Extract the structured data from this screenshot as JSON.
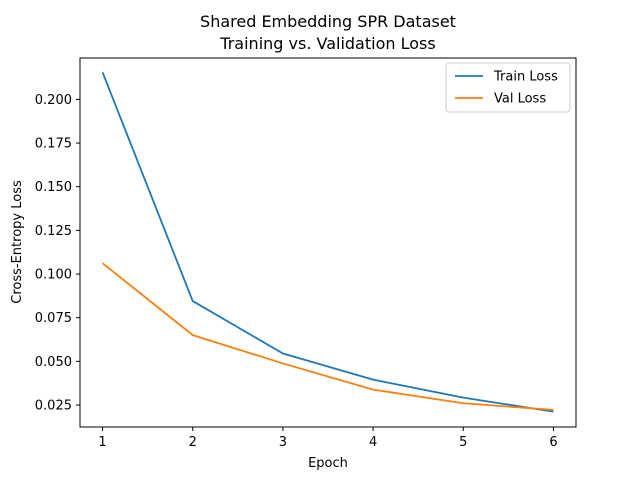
{
  "chart_data": {
    "type": "line",
    "title": "Shared Embedding SPR Dataset",
    "subtitle": "Training vs. Validation Loss",
    "xlabel": "Epoch",
    "ylabel": "Cross-Entropy Loss",
    "x": [
      1,
      2,
      3,
      4,
      5,
      6
    ],
    "xticks": [
      "1",
      "2",
      "3",
      "4",
      "5",
      "6"
    ],
    "yticks": [
      "0.025",
      "0.050",
      "0.075",
      "0.100",
      "0.125",
      "0.150",
      "0.175",
      "0.200"
    ],
    "ylim": [
      0.0124,
      0.2237
    ],
    "xlim": [
      0.75,
      6.25
    ],
    "grid": false,
    "legend_position": "top-right",
    "series": [
      {
        "name": "Train Loss",
        "color": "#1f77b4",
        "values": [
          0.2155,
          0.0845,
          0.0545,
          0.0395,
          0.0292,
          0.0212
        ]
      },
      {
        "name": "Val Loss",
        "color": "#ff7f0e",
        "values": [
          0.1062,
          0.065,
          0.0488,
          0.0338,
          0.026,
          0.0222
        ]
      }
    ]
  }
}
